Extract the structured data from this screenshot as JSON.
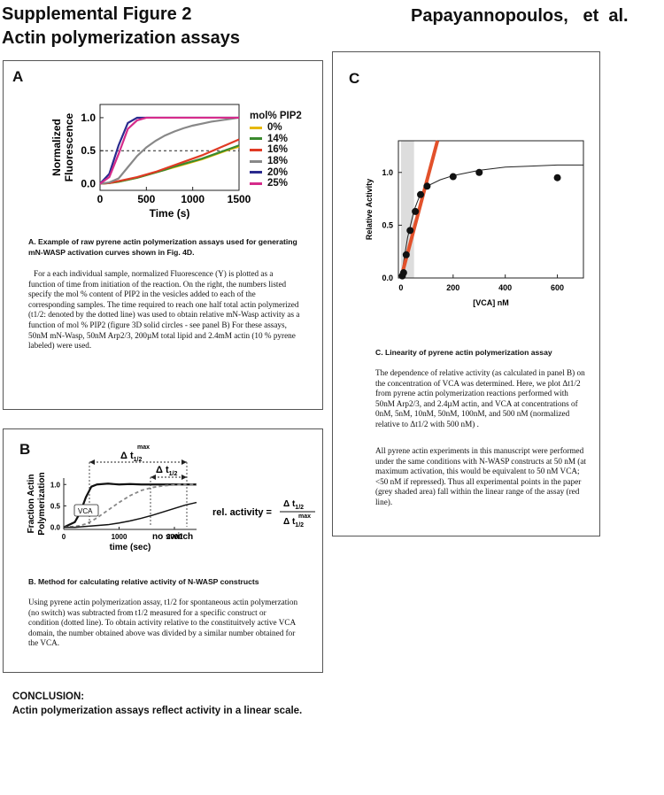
{
  "header": {
    "title_line1": "Supplemental Figure 2",
    "title_line2": "Actin polymerization assays",
    "authors": "Papayannopoulos,   et  al."
  },
  "panel_a": {
    "label": "A",
    "ylabel_line1": "Normalized",
    "ylabel_line2": "Fluorescence",
    "xlabel": "Time (s)",
    "xticks": [
      "0",
      "500",
      "1000",
      "1500"
    ],
    "yticks": [
      "0.0",
      "0.5",
      "1.0"
    ],
    "legend_title": "mol% PIP2",
    "legend": [
      {
        "label": "0%",
        "color": "#e6b800"
      },
      {
        "label": "14%",
        "color": "#3a8a2e"
      },
      {
        "label": "16%",
        "color": "#e03a24"
      },
      {
        "label": "18%",
        "color": "#888888"
      },
      {
        "label": "20%",
        "color": "#2a2a8e"
      },
      {
        "label": "25%",
        "color": "#d52b8a"
      }
    ],
    "caption_title": "A.  Example of raw pyrene actin polymerization assays used for generating mN-WASP activation curves shown in Fig. 4D.",
    "caption_body": "For a each individual sample, normalized Fluorescence (Y) is plotted as a function of time from initiation of the reaction. On the right, the numbers listed specify the mol % content of PIP2 in the vesicles added to each of the corresponding samples. The time required to reach one half total actin polymerized (t1/2: denoted by the dotted line) was used to obtain relative mN-Wasp activity as a function of mol % PIP2 (figure 3D solid circles - see panel B)  For these assays, 50nM mN-Wasp, 50nM Arp2/3, 200µM total lipid and 2.4mM actin (10 % pyrene labeled) were used."
  },
  "panel_b": {
    "label": "B",
    "ylabel_line1": "Fraction  Actin",
    "ylabel_line2": "Polymerization",
    "xlabel": "time  (sec)",
    "xticks": [
      "0",
      "1000",
      "2000"
    ],
    "yticks": [
      "0.0",
      "0.5",
      "1.0"
    ],
    "vca_label": "VCA",
    "noswitch_label": "no  switch",
    "dt_max": "Δ t",
    "dt_max_sub": "1/2",
    "dt_max_sup": "max",
    "dt": "Δ t",
    "dt_sub": "1/2",
    "rel_activity": "rel. activity =",
    "frac_num": "Δ t",
    "frac_num_sub": "1/2",
    "frac_den": "Δ t",
    "frac_den_sub": "1/2",
    "frac_den_sup": "max",
    "caption_title": "B. Method for calculating relative activity of N-WASP constructs",
    "caption_body": "Using pyrene actin polymerization assay, t1/2 for spontaneous actin polymerzation (no switch) was subtracted from t1/2 measured for a specific construct or condition (dotted line).  To obtain activity relative to the constituitvely active VCA domain,  the number obtained above was divided by a similar number obtained for the VCA."
  },
  "panel_c": {
    "label": "C",
    "ylabel": "Relative Activity",
    "xlabel": "[VCA] nM",
    "xticks": [
      "0",
      "200",
      "400",
      "600"
    ],
    "yticks": [
      "0.0",
      "0.5",
      "1.0"
    ],
    "caption_title": "C.  Linearity of pyrene actin polymerization assay",
    "caption_body1": "The dependence of relative activity (as calculated in panel B) on the concentration of VCA was determined.  Here, we plot Δt1/2 from pyrene actin polymerization reactions performed with  50nM Arp2/3, and 2.4µM actin, and VCA at concentrations of 0nM, 5nM,  10nM, 50nM, 100nM, and 500 nM (normalized relative to Δt1/2 with 500 nM) .",
    "caption_body2": "All pyrene actin experiments in this manuscript were performed under the same conditions with N-WASP constructs at 50 nM (at maximum activation, this would be equivalent to 50 nM VCA; <50 nM if repressed).   Thus all experimental points in the paper (grey shaded area) fall within the linear range of the assay (red line)."
  },
  "conclusion": {
    "title": "CONCLUSION:",
    "body": "Actin polymerization assays reflect activity in a linear scale."
  },
  "chart_data": [
    {
      "type": "line",
      "panel": "A",
      "xlabel": "Time (s)",
      "ylabel": "Normalized Fluorescence",
      "xlim": [
        0,
        1500
      ],
      "ylim": [
        -0.1,
        1.2
      ],
      "x": [
        0,
        100,
        200,
        300,
        400,
        500,
        600,
        700,
        800,
        900,
        1000,
        1100,
        1200,
        1300,
        1400,
        1500
      ],
      "series": [
        {
          "name": "0%",
          "color": "#e6b800",
          "values": [
            0,
            0.01,
            0.03,
            0.06,
            0.09,
            0.13,
            0.17,
            0.21,
            0.25,
            0.29,
            0.33,
            0.37,
            0.42,
            0.47,
            0.52,
            0.56
          ]
        },
        {
          "name": "14%",
          "color": "#3a8a2e",
          "values": [
            0,
            0.01,
            0.03,
            0.06,
            0.09,
            0.13,
            0.17,
            0.21,
            0.26,
            0.3,
            0.34,
            0.38,
            0.43,
            0.48,
            0.53,
            0.58
          ]
        },
        {
          "name": "16%",
          "color": "#e03a24",
          "values": [
            0,
            0.01,
            0.04,
            0.07,
            0.1,
            0.14,
            0.18,
            0.23,
            0.28,
            0.33,
            0.38,
            0.43,
            0.49,
            0.55,
            0.61,
            0.67
          ]
        },
        {
          "name": "18%",
          "color": "#888888",
          "values": [
            0,
            0.02,
            0.08,
            0.25,
            0.42,
            0.55,
            0.65,
            0.73,
            0.79,
            0.84,
            0.88,
            0.91,
            0.94,
            0.96,
            0.98,
            1.0
          ]
        },
        {
          "name": "20%",
          "color": "#2a2a8e",
          "values": [
            0,
            0.15,
            0.58,
            0.92,
            1.0,
            1.0,
            1.0,
            1.0,
            1.0,
            1.0,
            1.0,
            1.0,
            1.0,
            1.0,
            1.0,
            1.0
          ]
        },
        {
          "name": "25%",
          "color": "#d52b8a",
          "values": [
            0,
            0.1,
            0.45,
            0.83,
            0.96,
            1.0,
            1.0,
            1.0,
            1.0,
            1.0,
            1.0,
            1.0,
            1.0,
            1.0,
            1.0,
            1.0
          ]
        }
      ],
      "threshold_line": 0.5
    },
    {
      "type": "line",
      "panel": "B",
      "xlabel": "time  (sec)",
      "ylabel": "Fraction Actin Polymerization",
      "xlim": [
        0,
        2400
      ],
      "ylim": [
        -0.05,
        1.15
      ],
      "x": [
        0,
        200,
        300,
        400,
        500,
        600,
        800,
        1000,
        1200,
        1400,
        1600,
        1800,
        2000,
        2200,
        2400
      ],
      "series": [
        {
          "name": "VCA",
          "values": [
            0,
            0.12,
            0.35,
            0.7,
            0.95,
            1.0,
            1.02,
            1.0,
            1.01,
            1.0,
            1.0,
            1.0,
            1.0,
            1.0,
            1.0
          ]
        },
        {
          "name": "dashed",
          "values": [
            0,
            0.02,
            0.04,
            0.08,
            0.14,
            0.22,
            0.4,
            0.58,
            0.74,
            0.86,
            0.93,
            0.97,
            0.99,
            1.0,
            1.0
          ]
        },
        {
          "name": "no  switch",
          "values": [
            0,
            0.0,
            0.01,
            0.02,
            0.03,
            0.04,
            0.06,
            0.1,
            0.15,
            0.21,
            0.28,
            0.36,
            0.44,
            0.52,
            0.58
          ]
        }
      ]
    },
    {
      "type": "scatter",
      "panel": "C",
      "xlabel": "[VCA] nM",
      "ylabel": "Relative Activity",
      "xlim": [
        -10,
        700
      ],
      "ylim": [
        0,
        1.3
      ],
      "points": [
        {
          "x": 5,
          "y": 0.02
        },
        {
          "x": 10,
          "y": 0.05
        },
        {
          "x": 20,
          "y": 0.22
        },
        {
          "x": 35,
          "y": 0.45
        },
        {
          "x": 55,
          "y": 0.63
        },
        {
          "x": 75,
          "y": 0.79
        },
        {
          "x": 100,
          "y": 0.87
        },
        {
          "x": 200,
          "y": 0.96
        },
        {
          "x": 300,
          "y": 1.0
        },
        {
          "x": 600,
          "y": 0.95
        }
      ],
      "fit_curve": {
        "x": [
          0,
          25,
          50,
          75,
          100,
          150,
          200,
          300,
          400,
          500,
          600,
          700
        ],
        "y": [
          0.0,
          0.38,
          0.64,
          0.8,
          0.87,
          0.93,
          0.97,
          1.02,
          1.05,
          1.06,
          1.07,
          1.07
        ]
      },
      "linear_fit": {
        "x": [
          0,
          140
        ],
        "y": [
          0.0,
          1.3
        ]
      },
      "shaded_region_x": [
        0,
        50
      ]
    }
  ]
}
